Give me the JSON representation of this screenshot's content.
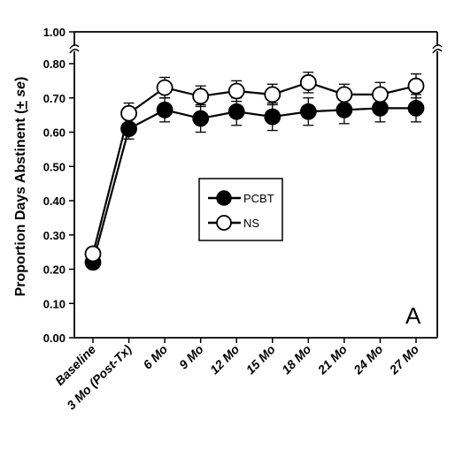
{
  "chart_data": {
    "type": "line",
    "ylabel_main": "Proportion Days Abstinent (",
    "ylabel_pm": "+",
    "ylabel_se": " se",
    "ylabel_close": ")",
    "panel_label": "A",
    "y_ticks_lower": [
      "0.00",
      "0.10",
      "0.20",
      "0.30",
      "0.40",
      "0.50",
      "0.60",
      "0.70",
      "0.80"
    ],
    "y_tick_upper": "1.00",
    "ylim": [
      0,
      0.8
    ],
    "y_axis_break": true,
    "categories": [
      "Baseline",
      "3 Mo (Post-Tx)",
      "6 Mo",
      "9 Mo",
      "12 Mo",
      "15 Mo",
      "18 Mo",
      "21 Mo",
      "24 Mo",
      "27 Mo"
    ],
    "series": [
      {
        "name": "PCBT",
        "marker": "filled-circle",
        "values": [
          0.22,
          0.61,
          0.665,
          0.64,
          0.66,
          0.645,
          0.66,
          0.665,
          0.67,
          0.67
        ],
        "se": [
          0.0,
          0.03,
          0.035,
          0.04,
          0.04,
          0.04,
          0.04,
          0.04,
          0.04,
          0.04
        ]
      },
      {
        "name": "NS",
        "marker": "open-circle",
        "values": [
          0.245,
          0.655,
          0.73,
          0.705,
          0.72,
          0.71,
          0.745,
          0.71,
          0.71,
          0.735
        ],
        "se": [
          0.0,
          0.03,
          0.03,
          0.03,
          0.03,
          0.03,
          0.03,
          0.03,
          0.035,
          0.035
        ]
      }
    ],
    "legend_position": "center",
    "grid": false
  }
}
